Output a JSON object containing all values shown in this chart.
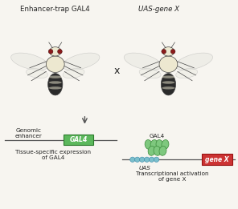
{
  "bg_color": "#f7f5f0",
  "title_left": "Enhancer-trap GAL4",
  "title_right": "UAS-gene X",
  "cross_symbol": "x",
  "left_diagram": {
    "enhancer_label": "Genomic\nenhancer",
    "gal4_box_color": "#5cb85c",
    "gal4_box_label": "GAL4",
    "caption": "Tissue-specific expression\nof GAL4"
  },
  "right_diagram": {
    "gal4_protein_color": "#7ec87e",
    "gal4_protein_label": "GAL4",
    "uas_circle_color": "#7bbfcc",
    "uas_label": "UAS",
    "gene_box_color": "#cc3333",
    "gene_box_label": "gene X",
    "caption": "Transcriptional activation\nof gene X"
  },
  "fly_body_color": "#ede8d0",
  "fly_stripe_color": "#444444",
  "fly_wing_color": "#e8e8e0",
  "fly_abdomen_dark_color": "#2a2a2a",
  "fly_eye_color": "#8b1a1a",
  "line_color": "#555555",
  "text_color": "#222222",
  "font_size_title": 6.2,
  "font_size_label": 5.2,
  "font_size_caption": 5.2,
  "font_size_box": 5.5
}
